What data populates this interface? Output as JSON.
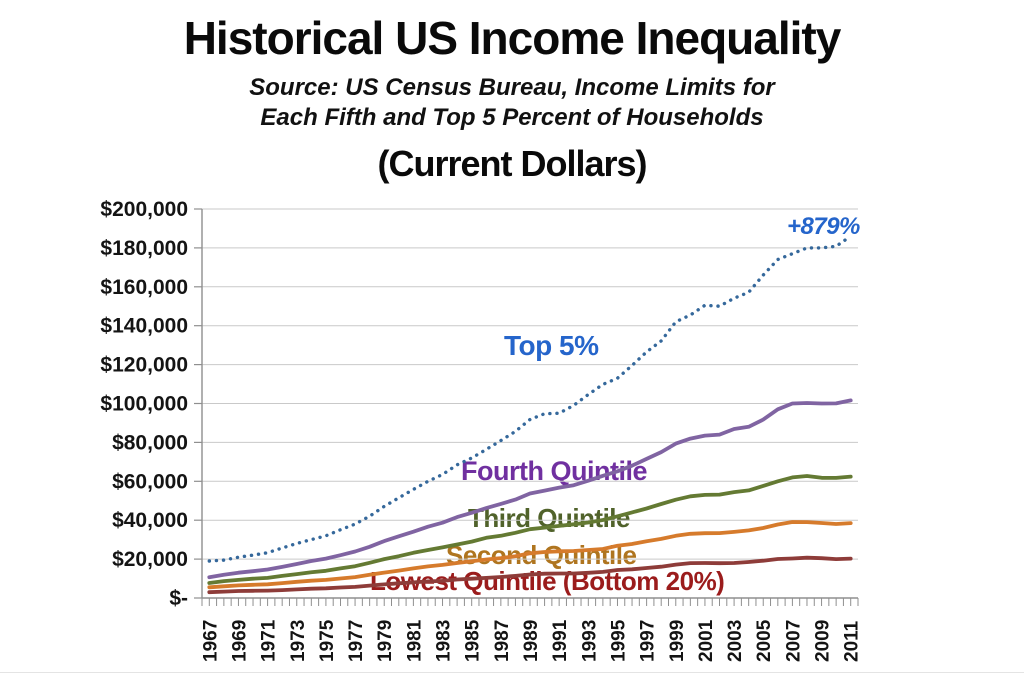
{
  "chart_data": {
    "type": "line",
    "title": "Historical US Income Inequality",
    "subtitle_line1": "Source:  US Census Bureau, Income Limits for",
    "subtitle_line2": "Each Fifth and Top 5 Percent of Households",
    "units_note": "(Current Dollars)",
    "xlabel": "",
    "ylabel": "",
    "ylim": [
      0,
      200000
    ],
    "y_tick_step": 20000,
    "grid": "horizontal",
    "legend_position": "inline-labels",
    "y_tick_labels": [
      "$-",
      "$20,000",
      "$40,000",
      "$60,000",
      "$80,000",
      "$100,000",
      "$120,000",
      "$140,000",
      "$160,000",
      "$180,000",
      "$200,000"
    ],
    "x": [
      1967,
      1968,
      1969,
      1970,
      1971,
      1972,
      1973,
      1974,
      1975,
      1976,
      1977,
      1978,
      1979,
      1980,
      1981,
      1982,
      1983,
      1984,
      1985,
      1986,
      1987,
      1988,
      1989,
      1990,
      1991,
      1992,
      1993,
      1994,
      1995,
      1996,
      1997,
      1998,
      1999,
      2000,
      2001,
      2002,
      2003,
      2004,
      2005,
      2006,
      2007,
      2008,
      2009,
      2010,
      2011
    ],
    "x_tick_labels": [
      "1967",
      "1969",
      "1971",
      "1973",
      "1975",
      "1977",
      "1979",
      "1981",
      "1983",
      "1985",
      "1987",
      "1989",
      "1991",
      "1993",
      "1995",
      "1997",
      "1999",
      "2001",
      "2003",
      "2005",
      "2007",
      "2009",
      "2011"
    ],
    "series": [
      {
        "name": "Top 5%",
        "style": "dotted",
        "color": "#35689B",
        "label_color": "#2565CB",
        "values": [
          19000,
          19500,
          21000,
          22074,
          23300,
          25716,
          28000,
          30000,
          32000,
          35090,
          38000,
          42072,
          47081,
          51500,
          55850,
          60000,
          63500,
          68500,
          72000,
          76380,
          80928,
          85640,
          91750,
          94748,
          95000,
          99020,
          104639,
          109821,
          113000,
          119540,
          126550,
          132199,
          142021,
          145526,
          150499,
          150002,
          154120,
          157185,
          166000,
          174012,
          177000,
          180000,
          180001,
          180810,
          186000
        ]
      },
      {
        "name": "Fourth Quintile",
        "style": "solid",
        "color": "#8064A2",
        "label_color": "#7030A0",
        "values": [
          10700,
          12000,
          13000,
          13800,
          14661,
          16000,
          17505,
          19000,
          20263,
          22000,
          23923,
          26334,
          29250,
          31700,
          34101,
          36670,
          38700,
          41600,
          43809,
          46211,
          48363,
          50593,
          53710,
          55205,
          56760,
          58007,
          60300,
          62841,
          65124,
          68015,
          71500,
          75000,
          79375,
          81960,
          83500,
          84016,
          86867,
          88029,
          91705,
          97032,
          100000,
          100240,
          100000,
          100065,
          101582
        ]
      },
      {
        "name": "Third Quintile",
        "style": "solid",
        "color": "#647A33",
        "label_color": "#50622A",
        "values": [
          7700,
          8700,
          9300,
          9900,
          10340,
          11339,
          12274,
          13200,
          14000,
          15200,
          16350,
          18122,
          20000,
          21500,
          23240,
          24690,
          26000,
          27506,
          29022,
          30943,
          32000,
          33506,
          35350,
          36200,
          37070,
          37900,
          38793,
          40100,
          42002,
          44006,
          46000,
          48337,
          50520,
          52272,
          53000,
          53162,
          54453,
          55331,
          57660,
          60000,
          62000,
          62725,
          61801,
          61735,
          62434
        ]
      },
      {
        "name": "Second Quintile",
        "style": "solid",
        "color": "#D67B2C",
        "label_color": "#AF751F",
        "values": [
          5500,
          6000,
          6500,
          6800,
          7064,
          7683,
          8340,
          8914,
          9300,
          10000,
          10721,
          12000,
          13078,
          14100,
          15204,
          16240,
          17000,
          18000,
          18852,
          19783,
          20500,
          21500,
          23000,
          23662,
          24000,
          24140,
          24679,
          25200,
          26914,
          27760,
          29200,
          30408,
          32000,
          33006,
          33314,
          33377,
          34000,
          34738,
          36000,
          37774,
          39100,
          39000,
          38550,
          38043,
          38520
        ]
      },
      {
        "name": "Lowest Quintile (Bottom 20%)",
        "style": "solid",
        "color": "#8E3C39",
        "label_color": "#9B1C1C",
        "values": [
          3000,
          3300,
          3600,
          3700,
          3800,
          4050,
          4420,
          4800,
          5000,
          5400,
          5700,
          6400,
          7000,
          7556,
          8000,
          8520,
          8800,
          9500,
          9941,
          10358,
          10800,
          11382,
          12096,
          12500,
          12588,
          12600,
          12967,
          13426,
          14400,
          14768,
          15400,
          16116,
          17196,
          17955,
          17970,
          17916,
          17984,
          18500,
          19178,
          20035,
          20291,
          20712,
          20453,
          20000,
          20262
        ]
      }
    ],
    "annotation": {
      "text": "+879%",
      "series": "Top 5%",
      "color": "#2565CB"
    },
    "axis_color": "#8f8f8f",
    "gridline_color": "#c9c9c9"
  }
}
